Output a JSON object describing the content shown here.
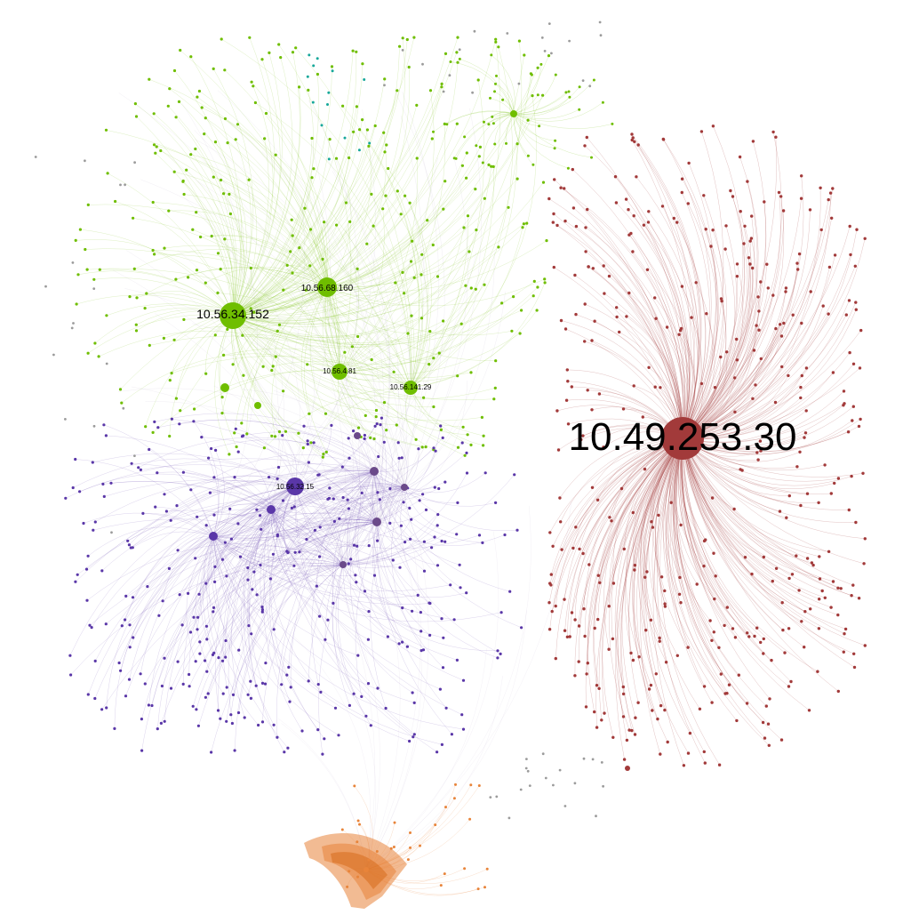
{
  "colors": {
    "green": "#6fbe00",
    "purple": "#5a37a8",
    "purple_dark": "#6b4a8a",
    "red": "#a23a3a",
    "orange": "#e8843a",
    "teal": "#17a89a",
    "gray": "#9b9b9b"
  },
  "hubs": [
    {
      "id": "hub-red-1",
      "label": "10.49.253.30",
      "cluster": "red"
    },
    {
      "id": "hub-green-1",
      "label": "10.56.34.152",
      "cluster": "green"
    },
    {
      "id": "hub-green-2",
      "label": "10.56.68.160",
      "cluster": "green"
    },
    {
      "id": "hub-green-3",
      "label": "10.56.4.81",
      "cluster": "green"
    },
    {
      "id": "hub-green-4",
      "label": "10.56.141.29",
      "cluster": "green"
    },
    {
      "id": "hub-purple-1",
      "label": "10.56.32.15",
      "cluster": "purple"
    }
  ],
  "minor_hubs": [
    {
      "id": "mh1",
      "cluster": "green"
    },
    {
      "id": "mh2",
      "cluster": "green"
    },
    {
      "id": "mh3",
      "cluster": "green"
    },
    {
      "id": "mh4",
      "cluster": "purple"
    },
    {
      "id": "mh5",
      "cluster": "purple"
    },
    {
      "id": "mh6",
      "cluster": "purple"
    },
    {
      "id": "mh7",
      "cluster": "purple"
    },
    {
      "id": "mh8",
      "cluster": "purple"
    },
    {
      "id": "mh9",
      "cluster": "purple"
    },
    {
      "id": "mh10",
      "cluster": "purple"
    },
    {
      "id": "mh11",
      "cluster": "red"
    },
    {
      "id": "mh12",
      "cluster": "orange"
    }
  ]
}
